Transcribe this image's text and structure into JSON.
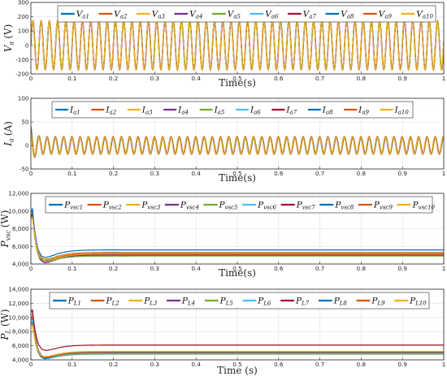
{
  "chart_data": [
    {
      "type": "line",
      "id": "voltage",
      "ylabel_main": "V",
      "ylabel_sub": "a",
      "ylabel_unit": "(V)",
      "xlabel": "Time(s)",
      "xlim": [
        0,
        1
      ],
      "ylim": [
        -200,
        300
      ],
      "xticks": [
        "0",
        "0.1",
        "0.2",
        "0.3",
        "0.4",
        "0.5",
        "0.6",
        "0.7",
        "0.8",
        "0.9",
        "1"
      ],
      "yticks": [
        "300",
        "200",
        "100",
        "0",
        "-100",
        "-200"
      ],
      "grid": true,
      "legend_position": "top",
      "waveform": {
        "kind": "sine",
        "amplitude": 170,
        "frequency_hz": 50,
        "offset": 0
      },
      "series": [
        {
          "name_main": "V",
          "name_sub": "a1"
        },
        {
          "name_main": "V",
          "name_sub": "a2"
        },
        {
          "name_main": "V",
          "name_sub": "a3"
        },
        {
          "name_main": "V",
          "name_sub": "a4"
        },
        {
          "name_main": "V",
          "name_sub": "a5"
        },
        {
          "name_main": "V",
          "name_sub": "a6"
        },
        {
          "name_main": "V",
          "name_sub": "a7"
        },
        {
          "name_main": "V",
          "name_sub": "a8"
        },
        {
          "name_main": "V",
          "name_sub": "a9"
        },
        {
          "name_main": "V",
          "name_sub": "a10"
        }
      ]
    },
    {
      "type": "line",
      "id": "current",
      "ylabel_main": "I",
      "ylabel_sub": "a",
      "ylabel_unit": "(A)",
      "xlabel": "Time(s)",
      "xlim": [
        0,
        1
      ],
      "ylim": [
        -50,
        100
      ],
      "xticks": [
        "0",
        "0.1",
        "0.2",
        "0.3",
        "0.4",
        "0.5",
        "0.6",
        "0.7",
        "0.8",
        "0.9",
        "1"
      ],
      "yticks": [
        "100",
        "50",
        "0",
        "-50"
      ],
      "grid": true,
      "legend_position": "top",
      "waveform": {
        "kind": "sine",
        "amplitude": 18,
        "frequency_hz": 50,
        "offset": 0,
        "initial_peak": 42
      },
      "series": [
        {
          "name_main": "I",
          "name_sub": "a1"
        },
        {
          "name_main": "I",
          "name_sub": "a2"
        },
        {
          "name_main": "I",
          "name_sub": "a3"
        },
        {
          "name_main": "I",
          "name_sub": "a4"
        },
        {
          "name_main": "I",
          "name_sub": "a5"
        },
        {
          "name_main": "I",
          "name_sub": "a6"
        },
        {
          "name_main": "I",
          "name_sub": "a7"
        },
        {
          "name_main": "I",
          "name_sub": "a8"
        },
        {
          "name_main": "I",
          "name_sub": "a9"
        },
        {
          "name_main": "I",
          "name_sub": "a10"
        }
      ]
    },
    {
      "type": "line",
      "id": "pvsc",
      "ylabel_main": "P",
      "ylabel_sub": "vsc",
      "ylabel_unit": "(W)",
      "xlabel": "Time(s)",
      "xlim": [
        0,
        1
      ],
      "ylim": [
        4000,
        12000
      ],
      "xticks": [
        "0",
        "0.1",
        "0.2",
        "0.3",
        "0.4",
        "0.5",
        "0.6",
        "0.7",
        "0.8",
        "0.9",
        "1"
      ],
      "yticks": [
        "12,000",
        "10,000",
        "8,000",
        "6,000",
        "4,000"
      ],
      "grid": true,
      "legend_position": "top",
      "series": [
        {
          "name_main": "P",
          "name_sub": "vsc1",
          "steady": 5050,
          "start": 10200
        },
        {
          "name_main": "P",
          "name_sub": "vsc2",
          "steady": 4950,
          "start": 9900
        },
        {
          "name_main": "P",
          "name_sub": "vsc3",
          "steady": 5100,
          "start": 9700
        },
        {
          "name_main": "P",
          "name_sub": "vsc4",
          "steady": 5000,
          "start": 9500
        },
        {
          "name_main": "P",
          "name_sub": "vsc5",
          "steady": 4900,
          "start": 9300
        },
        {
          "name_main": "P",
          "name_sub": "vsc6",
          "steady": 5200,
          "start": 9800
        },
        {
          "name_main": "P",
          "name_sub": "vsc7",
          "steady": 5300,
          "start": 9600
        },
        {
          "name_main": "P",
          "name_sub": "vsc8",
          "steady": 5600,
          "start": 10000
        },
        {
          "name_main": "P",
          "name_sub": "vsc9",
          "steady": 5150,
          "start": 9400
        },
        {
          "name_main": "P",
          "name_sub": "vsc10",
          "steady": 5250,
          "start": 9200
        }
      ]
    },
    {
      "type": "line",
      "id": "pload",
      "ylabel_main": "P",
      "ylabel_sub": "L",
      "ylabel_unit": "(W)",
      "xlabel": "Time (s)",
      "xlim": [
        0,
        1
      ],
      "ylim": [
        4000,
        14000
      ],
      "xticks": [
        "0",
        "0.1",
        "0.2",
        "0.3",
        "0.4",
        "0.5",
        "0.6",
        "0.7",
        "0.8",
        "0.9",
        "1"
      ],
      "yticks": [
        "14,000",
        "12,000",
        "10,000",
        "8,000",
        "6,000",
        "4,000"
      ],
      "grid": true,
      "legend_position": "top",
      "series": [
        {
          "name_main": "P",
          "name_sub": "L1",
          "steady": 4850,
          "start": 10800
        },
        {
          "name_main": "P",
          "name_sub": "L2",
          "steady": 4950,
          "start": 10400
        },
        {
          "name_main": "P",
          "name_sub": "L3",
          "steady": 5050,
          "start": 10100
        },
        {
          "name_main": "P",
          "name_sub": "L4",
          "steady": 5000,
          "start": 9900
        },
        {
          "name_main": "P",
          "name_sub": "L5",
          "steady": 4800,
          "start": 9700
        },
        {
          "name_main": "P",
          "name_sub": "L6",
          "steady": 4900,
          "start": 9500
        },
        {
          "name_main": "P",
          "name_sub": "L7",
          "steady": 6100,
          "start": 11000
        },
        {
          "name_main": "P",
          "name_sub": "L8",
          "steady": 5100,
          "start": 9300
        },
        {
          "name_main": "P",
          "name_sub": "L9",
          "steady": 5000,
          "start": 9100
        },
        {
          "name_main": "P",
          "name_sub": "L10",
          "steady": 5200,
          "start": 8900
        }
      ]
    }
  ],
  "colors": [
    "#0072bd",
    "#d95319",
    "#edb120",
    "#7e2f8e",
    "#77ac30",
    "#4dbeee",
    "#a2142f",
    "#0072bd",
    "#d95319",
    "#edb120"
  ]
}
